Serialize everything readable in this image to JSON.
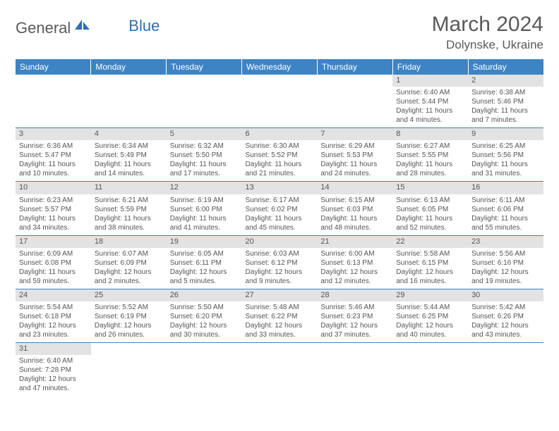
{
  "logo": {
    "text1": "General",
    "text2": "Blue"
  },
  "title": "March 2024",
  "location": "Dolynske, Ukraine",
  "colors": {
    "header_bg": "#3d84c5",
    "header_text": "#ffffff",
    "daynum_bg": "#e3e3e3",
    "text": "#555555",
    "border": "#3d84c5",
    "logo_blue": "#2e6eb5"
  },
  "weekdays": [
    "Sunday",
    "Monday",
    "Tuesday",
    "Wednesday",
    "Thursday",
    "Friday",
    "Saturday"
  ],
  "weeks": [
    [
      null,
      null,
      null,
      null,
      null,
      {
        "n": "1",
        "sr": "Sunrise: 6:40 AM",
        "ss": "Sunset: 5:44 PM",
        "d1": "Daylight: 11 hours",
        "d2": "and 4 minutes."
      },
      {
        "n": "2",
        "sr": "Sunrise: 6:38 AM",
        "ss": "Sunset: 5:46 PM",
        "d1": "Daylight: 11 hours",
        "d2": "and 7 minutes."
      }
    ],
    [
      {
        "n": "3",
        "sr": "Sunrise: 6:36 AM",
        "ss": "Sunset: 5:47 PM",
        "d1": "Daylight: 11 hours",
        "d2": "and 10 minutes."
      },
      {
        "n": "4",
        "sr": "Sunrise: 6:34 AM",
        "ss": "Sunset: 5:49 PM",
        "d1": "Daylight: 11 hours",
        "d2": "and 14 minutes."
      },
      {
        "n": "5",
        "sr": "Sunrise: 6:32 AM",
        "ss": "Sunset: 5:50 PM",
        "d1": "Daylight: 11 hours",
        "d2": "and 17 minutes."
      },
      {
        "n": "6",
        "sr": "Sunrise: 6:30 AM",
        "ss": "Sunset: 5:52 PM",
        "d1": "Daylight: 11 hours",
        "d2": "and 21 minutes."
      },
      {
        "n": "7",
        "sr": "Sunrise: 6:29 AM",
        "ss": "Sunset: 5:53 PM",
        "d1": "Daylight: 11 hours",
        "d2": "and 24 minutes."
      },
      {
        "n": "8",
        "sr": "Sunrise: 6:27 AM",
        "ss": "Sunset: 5:55 PM",
        "d1": "Daylight: 11 hours",
        "d2": "and 28 minutes."
      },
      {
        "n": "9",
        "sr": "Sunrise: 6:25 AM",
        "ss": "Sunset: 5:56 PM",
        "d1": "Daylight: 11 hours",
        "d2": "and 31 minutes."
      }
    ],
    [
      {
        "n": "10",
        "sr": "Sunrise: 6:23 AM",
        "ss": "Sunset: 5:57 PM",
        "d1": "Daylight: 11 hours",
        "d2": "and 34 minutes."
      },
      {
        "n": "11",
        "sr": "Sunrise: 6:21 AM",
        "ss": "Sunset: 5:59 PM",
        "d1": "Daylight: 11 hours",
        "d2": "and 38 minutes."
      },
      {
        "n": "12",
        "sr": "Sunrise: 6:19 AM",
        "ss": "Sunset: 6:00 PM",
        "d1": "Daylight: 11 hours",
        "d2": "and 41 minutes."
      },
      {
        "n": "13",
        "sr": "Sunrise: 6:17 AM",
        "ss": "Sunset: 6:02 PM",
        "d1": "Daylight: 11 hours",
        "d2": "and 45 minutes."
      },
      {
        "n": "14",
        "sr": "Sunrise: 6:15 AM",
        "ss": "Sunset: 6:03 PM",
        "d1": "Daylight: 11 hours",
        "d2": "and 48 minutes."
      },
      {
        "n": "15",
        "sr": "Sunrise: 6:13 AM",
        "ss": "Sunset: 6:05 PM",
        "d1": "Daylight: 11 hours",
        "d2": "and 52 minutes."
      },
      {
        "n": "16",
        "sr": "Sunrise: 6:11 AM",
        "ss": "Sunset: 6:06 PM",
        "d1": "Daylight: 11 hours",
        "d2": "and 55 minutes."
      }
    ],
    [
      {
        "n": "17",
        "sr": "Sunrise: 6:09 AM",
        "ss": "Sunset: 6:08 PM",
        "d1": "Daylight: 11 hours",
        "d2": "and 59 minutes."
      },
      {
        "n": "18",
        "sr": "Sunrise: 6:07 AM",
        "ss": "Sunset: 6:09 PM",
        "d1": "Daylight: 12 hours",
        "d2": "and 2 minutes."
      },
      {
        "n": "19",
        "sr": "Sunrise: 6:05 AM",
        "ss": "Sunset: 6:11 PM",
        "d1": "Daylight: 12 hours",
        "d2": "and 5 minutes."
      },
      {
        "n": "20",
        "sr": "Sunrise: 6:03 AM",
        "ss": "Sunset: 6:12 PM",
        "d1": "Daylight: 12 hours",
        "d2": "and 9 minutes."
      },
      {
        "n": "21",
        "sr": "Sunrise: 6:00 AM",
        "ss": "Sunset: 6:13 PM",
        "d1": "Daylight: 12 hours",
        "d2": "and 12 minutes."
      },
      {
        "n": "22",
        "sr": "Sunrise: 5:58 AM",
        "ss": "Sunset: 6:15 PM",
        "d1": "Daylight: 12 hours",
        "d2": "and 16 minutes."
      },
      {
        "n": "23",
        "sr": "Sunrise: 5:56 AM",
        "ss": "Sunset: 6:16 PM",
        "d1": "Daylight: 12 hours",
        "d2": "and 19 minutes."
      }
    ],
    [
      {
        "n": "24",
        "sr": "Sunrise: 5:54 AM",
        "ss": "Sunset: 6:18 PM",
        "d1": "Daylight: 12 hours",
        "d2": "and 23 minutes."
      },
      {
        "n": "25",
        "sr": "Sunrise: 5:52 AM",
        "ss": "Sunset: 6:19 PM",
        "d1": "Daylight: 12 hours",
        "d2": "and 26 minutes."
      },
      {
        "n": "26",
        "sr": "Sunrise: 5:50 AM",
        "ss": "Sunset: 6:20 PM",
        "d1": "Daylight: 12 hours",
        "d2": "and 30 minutes."
      },
      {
        "n": "27",
        "sr": "Sunrise: 5:48 AM",
        "ss": "Sunset: 6:22 PM",
        "d1": "Daylight: 12 hours",
        "d2": "and 33 minutes."
      },
      {
        "n": "28",
        "sr": "Sunrise: 5:46 AM",
        "ss": "Sunset: 6:23 PM",
        "d1": "Daylight: 12 hours",
        "d2": "and 37 minutes."
      },
      {
        "n": "29",
        "sr": "Sunrise: 5:44 AM",
        "ss": "Sunset: 6:25 PM",
        "d1": "Daylight: 12 hours",
        "d2": "and 40 minutes."
      },
      {
        "n": "30",
        "sr": "Sunrise: 5:42 AM",
        "ss": "Sunset: 6:26 PM",
        "d1": "Daylight: 12 hours",
        "d2": "and 43 minutes."
      }
    ],
    [
      {
        "n": "31",
        "sr": "Sunrise: 6:40 AM",
        "ss": "Sunset: 7:28 PM",
        "d1": "Daylight: 12 hours",
        "d2": "and 47 minutes."
      },
      null,
      null,
      null,
      null,
      null,
      null
    ]
  ]
}
